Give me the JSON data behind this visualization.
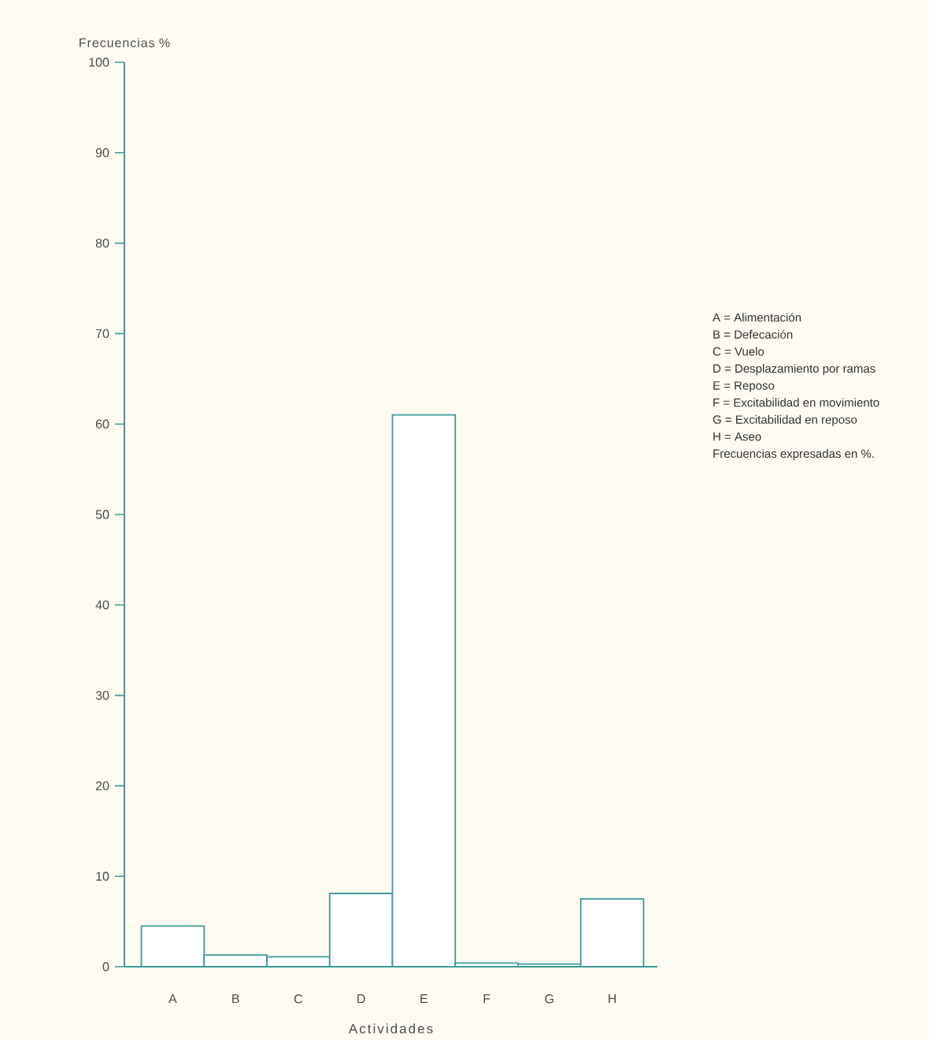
{
  "chart_data": {
    "type": "bar",
    "xlabel": "Actividades",
    "ylabel": "Frecuencias %",
    "categories": [
      "A",
      "B",
      "C",
      "D",
      "E",
      "F",
      "G",
      "H"
    ],
    "values": [
      4.5,
      1.3,
      1.1,
      8.1,
      61,
      0.4,
      0.3,
      7.5
    ],
    "color": "#3d9a98",
    "ylim": [
      0,
      100
    ],
    "yticks": [
      0,
      10,
      20,
      30,
      40,
      50,
      60,
      70,
      80,
      90,
      100
    ],
    "annotations": [
      "A = Alimentación",
      "B = Defecación",
      "C = Vuelo",
      "D = Desplazamiento por ramas",
      "E = Reposo",
      "F = Excitabilidad en movimiento",
      "G = Excitabilidad en reposo",
      "H = Aseo",
      "Frecuencias expresadas en %."
    ]
  }
}
